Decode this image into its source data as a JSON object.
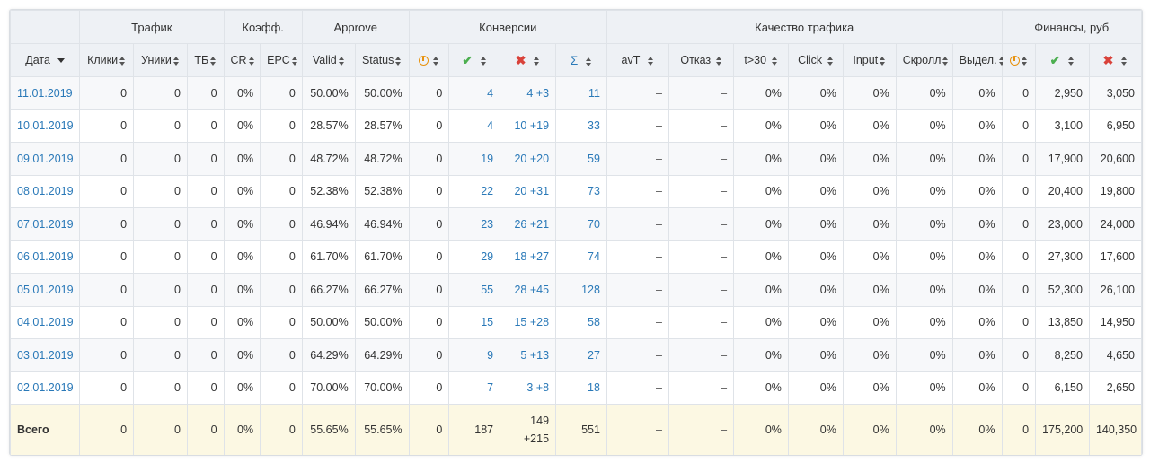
{
  "groups": {
    "traffic": "Трафик",
    "coef": "Коэфф.",
    "approve": "Approve",
    "conversions": "Конверсии",
    "quality": "Качество трафика",
    "finance": "Финансы, руб"
  },
  "columns": {
    "date": "Дата",
    "clicks": "Клики",
    "uniques": "Уники",
    "tb": "ТБ",
    "cr": "CR",
    "epc": "EPC",
    "valid": "Valid",
    "status": "Status",
    "conv_hold": "clock-icon",
    "conv_approved": "check-icon",
    "conv_rejected": "cross-icon",
    "conv_sum": "Σ",
    "avt": "avT",
    "bounce": "Отказ",
    "t30": "t>30",
    "click": "Click",
    "input": "Input",
    "scroll": "Скролл",
    "select": "Выдел.",
    "fin_hold": "clock-icon",
    "fin_approved": "check-icon",
    "fin_rejected": "cross-icon"
  },
  "colors": {
    "link": "#2a79b8",
    "hold": "#e8920e",
    "approved": "#4caf50",
    "rejected": "#d9423a",
    "total_bg": "#fcf8e3"
  },
  "rows": [
    {
      "date": "11.01.2019",
      "clicks": "0",
      "uniques": "0",
      "tb": "0",
      "cr": "0%",
      "epc": "0",
      "valid": "50.00%",
      "status": "50.00%",
      "hold": "0",
      "approved": "4",
      "rejected": "4 +3",
      "sum": "11",
      "avt": "–",
      "bounce": "–",
      "t30": "0%",
      "click": "0%",
      "input": "0%",
      "scroll": "0%",
      "select": "0%",
      "fin_hold": "0",
      "fin_approved": "2,950",
      "fin_rejected": "3,050"
    },
    {
      "date": "10.01.2019",
      "clicks": "0",
      "uniques": "0",
      "tb": "0",
      "cr": "0%",
      "epc": "0",
      "valid": "28.57%",
      "status": "28.57%",
      "hold": "0",
      "approved": "4",
      "rejected": "10 +19",
      "sum": "33",
      "avt": "–",
      "bounce": "–",
      "t30": "0%",
      "click": "0%",
      "input": "0%",
      "scroll": "0%",
      "select": "0%",
      "fin_hold": "0",
      "fin_approved": "3,100",
      "fin_rejected": "6,950"
    },
    {
      "date": "09.01.2019",
      "clicks": "0",
      "uniques": "0",
      "tb": "0",
      "cr": "0%",
      "epc": "0",
      "valid": "48.72%",
      "status": "48.72%",
      "hold": "0",
      "approved": "19",
      "rejected": "20 +20",
      "sum": "59",
      "avt": "–",
      "bounce": "–",
      "t30": "0%",
      "click": "0%",
      "input": "0%",
      "scroll": "0%",
      "select": "0%",
      "fin_hold": "0",
      "fin_approved": "17,900",
      "fin_rejected": "20,600"
    },
    {
      "date": "08.01.2019",
      "clicks": "0",
      "uniques": "0",
      "tb": "0",
      "cr": "0%",
      "epc": "0",
      "valid": "52.38%",
      "status": "52.38%",
      "hold": "0",
      "approved": "22",
      "rejected": "20 +31",
      "sum": "73",
      "avt": "–",
      "bounce": "–",
      "t30": "0%",
      "click": "0%",
      "input": "0%",
      "scroll": "0%",
      "select": "0%",
      "fin_hold": "0",
      "fin_approved": "20,400",
      "fin_rejected": "19,800"
    },
    {
      "date": "07.01.2019",
      "clicks": "0",
      "uniques": "0",
      "tb": "0",
      "cr": "0%",
      "epc": "0",
      "valid": "46.94%",
      "status": "46.94%",
      "hold": "0",
      "approved": "23",
      "rejected": "26 +21",
      "sum": "70",
      "avt": "–",
      "bounce": "–",
      "t30": "0%",
      "click": "0%",
      "input": "0%",
      "scroll": "0%",
      "select": "0%",
      "fin_hold": "0",
      "fin_approved": "23,000",
      "fin_rejected": "24,000"
    },
    {
      "date": "06.01.2019",
      "clicks": "0",
      "uniques": "0",
      "tb": "0",
      "cr": "0%",
      "epc": "0",
      "valid": "61.70%",
      "status": "61.70%",
      "hold": "0",
      "approved": "29",
      "rejected": "18 +27",
      "sum": "74",
      "avt": "–",
      "bounce": "–",
      "t30": "0%",
      "click": "0%",
      "input": "0%",
      "scroll": "0%",
      "select": "0%",
      "fin_hold": "0",
      "fin_approved": "27,300",
      "fin_rejected": "17,600"
    },
    {
      "date": "05.01.2019",
      "clicks": "0",
      "uniques": "0",
      "tb": "0",
      "cr": "0%",
      "epc": "0",
      "valid": "66.27%",
      "status": "66.27%",
      "hold": "0",
      "approved": "55",
      "rejected": "28 +45",
      "sum": "128",
      "avt": "–",
      "bounce": "–",
      "t30": "0%",
      "click": "0%",
      "input": "0%",
      "scroll": "0%",
      "select": "0%",
      "fin_hold": "0",
      "fin_approved": "52,300",
      "fin_rejected": "26,100"
    },
    {
      "date": "04.01.2019",
      "clicks": "0",
      "uniques": "0",
      "tb": "0",
      "cr": "0%",
      "epc": "0",
      "valid": "50.00%",
      "status": "50.00%",
      "hold": "0",
      "approved": "15",
      "rejected": "15 +28",
      "sum": "58",
      "avt": "–",
      "bounce": "–",
      "t30": "0%",
      "click": "0%",
      "input": "0%",
      "scroll": "0%",
      "select": "0%",
      "fin_hold": "0",
      "fin_approved": "13,850",
      "fin_rejected": "14,950"
    },
    {
      "date": "03.01.2019",
      "clicks": "0",
      "uniques": "0",
      "tb": "0",
      "cr": "0%",
      "epc": "0",
      "valid": "64.29%",
      "status": "64.29%",
      "hold": "0",
      "approved": "9",
      "rejected": "5 +13",
      "sum": "27",
      "avt": "–",
      "bounce": "–",
      "t30": "0%",
      "click": "0%",
      "input": "0%",
      "scroll": "0%",
      "select": "0%",
      "fin_hold": "0",
      "fin_approved": "8,250",
      "fin_rejected": "4,650"
    },
    {
      "date": "02.01.2019",
      "clicks": "0",
      "uniques": "0",
      "tb": "0",
      "cr": "0%",
      "epc": "0",
      "valid": "70.00%",
      "status": "70.00%",
      "hold": "0",
      "approved": "7",
      "rejected": "3 +8",
      "sum": "18",
      "avt": "–",
      "bounce": "–",
      "t30": "0%",
      "click": "0%",
      "input": "0%",
      "scroll": "0%",
      "select": "0%",
      "fin_hold": "0",
      "fin_approved": "6,150",
      "fin_rejected": "2,650"
    }
  ],
  "total": {
    "date": "Всего",
    "clicks": "0",
    "uniques": "0",
    "tb": "0",
    "cr": "0%",
    "epc": "0",
    "valid": "55.65%",
    "status": "55.65%",
    "hold": "0",
    "approved": "187",
    "rejected_line1": "149",
    "rejected_line2": "+215",
    "sum": "551",
    "avt": "–",
    "bounce": "–",
    "t30": "0%",
    "click": "0%",
    "input": "0%",
    "scroll": "0%",
    "select": "0%",
    "fin_hold": "0",
    "fin_approved": "175,200",
    "fin_rejected": "140,350"
  }
}
